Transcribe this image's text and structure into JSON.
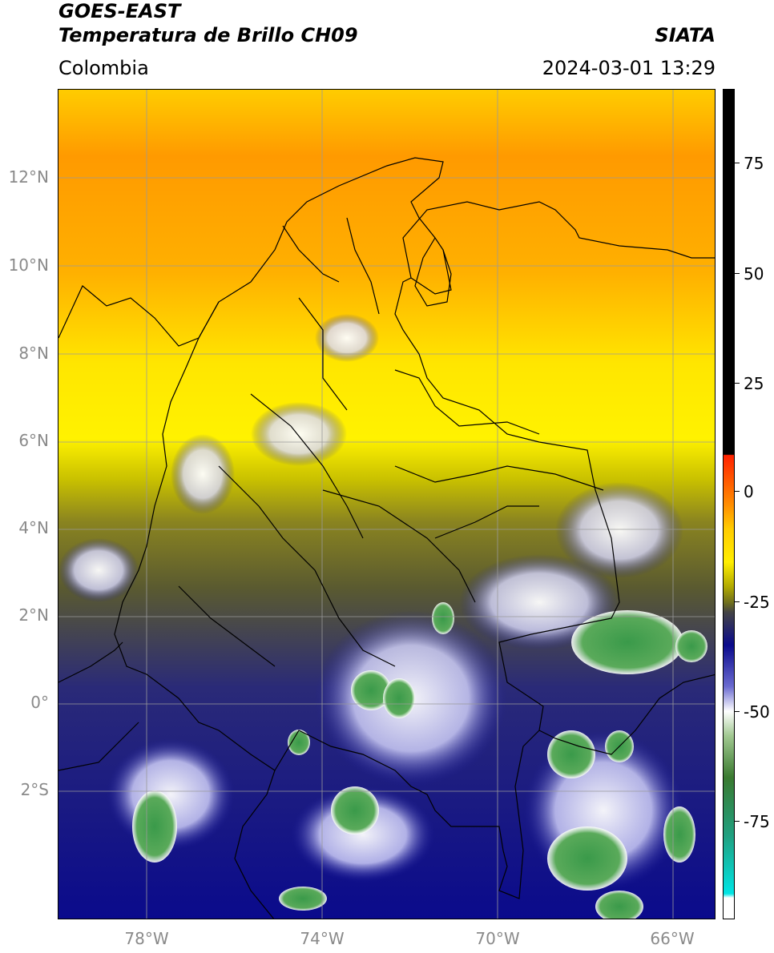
{
  "header": {
    "satellite": "GOES-EAST",
    "product": "Temperatura de Brillo CH09",
    "region": "Colombia",
    "agency": "SIATA",
    "datetime": "2024-03-01 13:29"
  },
  "map": {
    "lat_range": [
      -5,
      14
    ],
    "lon_range": [
      -80,
      -65
    ],
    "lat_labels": [
      "12°N",
      "10°N",
      "8°N",
      "6°N",
      "4°N",
      "2°N",
      "0°",
      "2°S"
    ],
    "lon_labels": [
      "78°W",
      "74°W",
      "70°W",
      "66°W"
    ]
  },
  "colorbar": {
    "labels": [
      "75",
      "50",
      "25",
      "0",
      "-25",
      "-50",
      "-75"
    ],
    "colors": {
      "warmest": "#000000",
      "red": "#ff2200",
      "orange": "#ff8c00",
      "yellow": "#ffee00",
      "olive": "#6b6b20",
      "gray": "#444444",
      "navy": "#0a0a8c",
      "white": "#ffffff",
      "green": "#3a9a4a",
      "teal": "#20b0a0",
      "cyan": "#00e5e5"
    }
  }
}
